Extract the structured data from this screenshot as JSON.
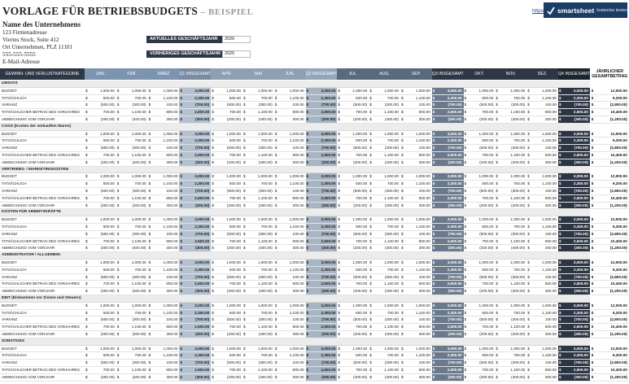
{
  "header": {
    "title_main": "VORLAGE FÜR BETRIEBSBUDGETS",
    "title_sub": "– BEISPIEL",
    "link_text": "https://de.smartsheet.com/...",
    "brand_name": "smartsheet",
    "brand_tagline": "kostenlos testen"
  },
  "company": {
    "name": "Name des Unternehmens",
    "address_lines": [
      "123 Firmenadresse",
      "Viertes Stock, Suite 412",
      "Ort Unternehmen, PLZ 11101",
      "555-555-5555",
      "E-Mail-Adresse"
    ]
  },
  "fiscal_year": {
    "current_label": "AKTUELLES GESCHÄFTSJAHR",
    "current_value": "2026",
    "previous_label": "VORHERIGES GESCHÄFTSJAHR",
    "previous_value": "2025"
  },
  "colors": {
    "title_sub": "#999999",
    "header_dark": "#2e3745",
    "header_month_light": "#7c94b0",
    "header_q1": "#7a8ca2",
    "q1_band": "#c3cfdc",
    "q2_band": "#c6d1dc",
    "q3_band": "#717f93",
    "q4_band": "#2b3544",
    "total_band": "#1f2836",
    "brand_bg": "#1b3c65"
  },
  "columns": {
    "category": "GEWINN- UND VERLUSTKATEGORIE",
    "months": [
      "JAN.",
      "FEB.",
      "MÄRZ",
      "Q1 INSGESAMT",
      "APR.",
      "MAI",
      "JUN.",
      "Q2 INSGESAMT",
      "JUL.",
      "AUG.",
      "SEP.",
      "Q3 INSGESAMT",
      "OKT.",
      "NOV.",
      "DEZ.",
      "Q4 INSGESAMT"
    ],
    "total_line1": "JÄHRLICHER",
    "total_line2": "GESAMTBETRAG"
  },
  "row_labels": [
    "BUDGET",
    "TATSÄCHLICH",
    "VARIANZ",
    "TATSÄCHLICHER BETRAG DES VORJAHRES",
    "ABWEICHUNG VOM VORJAHR"
  ],
  "sections": [
    "UMSATZ",
    "COGS (Kosten der verkauften Waren)",
    "VERTRIEBS- / MARKETINGKOSTEN",
    "KOSTEN FÜR ARBEITSKRÄFTE",
    "ADMINISTRATOR / ALLGEMEIN",
    "EBIT (Einkommen vor Zinsen und Steuern)",
    "SONSTIGES"
  ],
  "row_values": {
    "budget": [
      "1,000.00",
      "1,000.00",
      "1,000.00",
      "3,000.00",
      "1,000.00",
      "1,000.00",
      "1,000.00",
      "3,000.00",
      "1,000.00",
      "1,000.00",
      "1,000.00",
      "3,000.00",
      "1,000.00",
      "1,000.00",
      "1,000.00",
      "3,000.00",
      "12,000.00"
    ],
    "actual": [
      "500.00",
      "700.00",
      "1,100.00",
      "2,300.00",
      "500.00",
      "700.00",
      "1,100.00",
      "2,300.00",
      "500.00",
      "700.00",
      "1,100.00",
      "2,300.00",
      "500.00",
      "700.00",
      "1,100.00",
      "2,300.00",
      "9,200.00"
    ],
    "variance": [
      "(500.00)",
      "(300.00)",
      "100.00",
      "(700.00)",
      "(500.00)",
      "(300.00)",
      "100.00",
      "(700.00)",
      "(500.00)",
      "(300.00)",
      "100.00",
      "(700.00)",
      "(500.00)",
      "(300.00)",
      "100.00",
      "(700.00)",
      "(2,800.00)"
    ],
    "prior": [
      "700.00",
      "1,100.00",
      "800.00",
      "2,600.00",
      "700.00",
      "1,100.00",
      "800.00",
      "2,600.00",
      "700.00",
      "1,100.00",
      "800.00",
      "2,600.00",
      "700.00",
      "1,100.00",
      "800.00",
      "2,600.00",
      "10,400.00"
    ],
    "yoy": [
      "(200.00)",
      "(400.00)",
      "300.00",
      "(300.00)",
      "(200.00)",
      "(400.00)",
      "300.00",
      "(300.00)",
      "(200.00)",
      "(400.00)",
      "300.00",
      "(300.00)",
      "(200.00)",
      "(400.00)",
      "300.00",
      "(300.00)",
      "(1,200.00)"
    ]
  },
  "currency_symbol": "$"
}
